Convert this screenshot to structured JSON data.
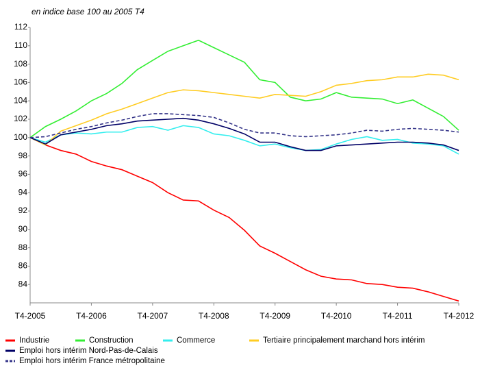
{
  "chart_data": {
    "type": "line",
    "title": "en indice base 100 au 2005 T4",
    "categories": [
      "T4-2005",
      null,
      null,
      null,
      "T4-2006",
      null,
      null,
      null,
      "T4-2007",
      null,
      null,
      null,
      "T4-2008",
      null,
      null,
      null,
      "T4-2009",
      null,
      null,
      null,
      "T4-2010",
      null,
      null,
      null,
      "T4-2011",
      null,
      null,
      null,
      "T4-2012"
    ],
    "ylim": [
      82,
      112
    ],
    "yticks": [
      84,
      86,
      88,
      90,
      92,
      94,
      96,
      98,
      100,
      102,
      104,
      106,
      108,
      110,
      112
    ],
    "grid": false,
    "legend": "bottom",
    "series": [
      {
        "name": "Industrie",
        "color": "#ff0000",
        "values": [
          100,
          99.2,
          98.6,
          98.2,
          97.4,
          96.9,
          96.5,
          95.8,
          95.1,
          94.0,
          93.2,
          93.1,
          92.1,
          91.3,
          89.9,
          88.2,
          87.4,
          86.5,
          85.6,
          84.9,
          84.6,
          84.5,
          84.1,
          84.0,
          83.7,
          83.6,
          83.2,
          82.7,
          82.2
        ]
      },
      {
        "name": "Construction",
        "color": "#33ee33",
        "values": [
          100,
          101.2,
          102.0,
          102.9,
          104.0,
          104.8,
          105.9,
          107.4,
          108.4,
          109.4,
          110.0,
          110.6,
          109.8,
          109.0,
          108.2,
          106.3,
          106.0,
          104.4,
          104.0,
          104.2,
          104.9,
          104.4,
          104.3,
          104.2,
          103.7,
          104.1,
          103.2,
          102.3,
          100.8
        ]
      },
      {
        "name": "Commerce",
        "color": "#33eeee",
        "values": [
          100,
          99.5,
          100.3,
          100.5,
          100.4,
          100.6,
          100.6,
          101.1,
          101.2,
          100.8,
          101.3,
          101.1,
          100.4,
          100.2,
          99.7,
          99.1,
          99.3,
          98.9,
          98.6,
          98.7,
          99.3,
          99.8,
          100.1,
          99.7,
          99.8,
          99.4,
          99.3,
          99.1,
          98.2
        ]
      },
      {
        "name": "Tertiaire principalement marchand hors intérim",
        "color": "#ffcc22",
        "values": [
          100,
          99.2,
          100.7,
          101.3,
          101.9,
          102.6,
          103.1,
          103.7,
          104.3,
          104.9,
          105.2,
          105.1,
          104.9,
          104.7,
          104.5,
          104.3,
          104.7,
          104.6,
          104.5,
          105.0,
          105.7,
          105.9,
          106.2,
          106.3,
          106.6,
          106.6,
          106.9,
          106.8,
          106.3
        ]
      },
      {
        "name": "Emploi hors intérim Nord-Pas-de-Calais",
        "color": "#000066",
        "values": [
          100,
          99.3,
          100.3,
          100.6,
          100.9,
          101.3,
          101.5,
          101.8,
          101.9,
          102.0,
          102.1,
          101.9,
          101.5,
          101.0,
          100.4,
          99.5,
          99.5,
          99.0,
          98.6,
          98.6,
          99.1,
          99.2,
          99.3,
          99.4,
          99.5,
          99.5,
          99.4,
          99.2,
          98.6
        ]
      },
      {
        "name": "Emploi hors intérim France métropolitaine",
        "color": "#333388",
        "dashed": true,
        "values": [
          100,
          100.1,
          100.5,
          100.9,
          101.2,
          101.6,
          101.9,
          102.3,
          102.6,
          102.6,
          102.5,
          102.4,
          102.2,
          101.6,
          100.9,
          100.5,
          100.5,
          100.2,
          100.1,
          100.2,
          100.3,
          100.5,
          100.8,
          100.7,
          100.9,
          101.0,
          100.9,
          100.8,
          100.6
        ]
      }
    ]
  }
}
